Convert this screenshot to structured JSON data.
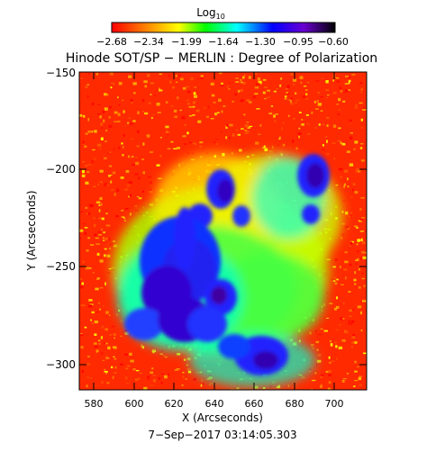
{
  "colorbar": {
    "title": "Log",
    "title_sub": "10",
    "tick_labels": [
      "−2.68",
      "−2.34",
      "−1.99",
      "−1.64",
      "−1.30",
      "−0.95",
      "−0.60"
    ],
    "colors": [
      "#ff0000",
      "#ff8000",
      "#ffff00",
      "#00ff00",
      "#00ffff",
      "#0000ff",
      "#6a00d0",
      "#000000"
    ]
  },
  "title": "Hinode SOT/SP − MERLIN : Degree of Polarization",
  "axes": {
    "xlabel": "X (Arcseconds)",
    "ylabel": "Y (Arcseconds)",
    "xticks": [
      "580",
      "600",
      "620",
      "640",
      "660",
      "680",
      "700"
    ],
    "yticks": [
      "−150",
      "−200",
      "−250",
      "−300"
    ]
  },
  "timestamp": "7−Sep−2017 03:14:05.303",
  "map_colors": {
    "background": "#ff2a00",
    "noise": [
      "#ff0000",
      "#ff5a00",
      "#ff9a00",
      "#ffd000",
      "#ffff00"
    ],
    "plage": [
      "#aaff00",
      "#44ff44",
      "#00ff99",
      "#00ffff"
    ],
    "spots": [
      "#0040ff",
      "#2020ff",
      "#3000e0",
      "#4000a0"
    ]
  }
}
